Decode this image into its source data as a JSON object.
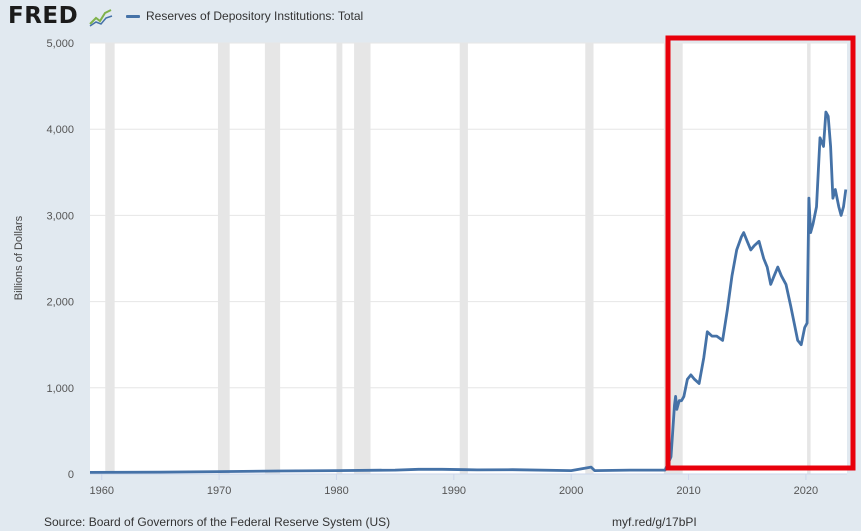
{
  "header": {
    "logo": "FRED",
    "logo_icon": "chart-line-icon",
    "legend_label": "Reserves of Depository Institutions: Total"
  },
  "footer": {
    "source": "Source: Board of Governors of the Federal Reserve System (US)",
    "link": "myf.red/g/17bPI"
  },
  "colors": {
    "series": "#4572a7",
    "recession": "#e6e6e6",
    "highlight": "#e8000b",
    "background": "#e1e9f0"
  },
  "chart_data": {
    "type": "line",
    "title": "",
    "ylabel": "Billions of Dollars",
    "xlabel": "",
    "xlim": [
      1959,
      2023.5
    ],
    "ylim": [
      0,
      5000
    ],
    "x_ticks": [
      1960,
      1970,
      1980,
      1990,
      2000,
      2010,
      2020
    ],
    "y_ticks": [
      0,
      1000,
      2000,
      3000,
      4000,
      5000
    ],
    "y_tick_labels": [
      "0",
      "1,000",
      "2,000",
      "3,000",
      "4,000",
      "5,000"
    ],
    "grid": "horizontal",
    "recessions": [
      [
        1960.3,
        1961.1
      ],
      [
        1969.9,
        1970.9
      ],
      [
        1973.9,
        1975.2
      ],
      [
        1980.0,
        1980.5
      ],
      [
        1981.5,
        1982.9
      ],
      [
        1990.5,
        1991.2
      ],
      [
        2001.2,
        2001.9
      ],
      [
        2007.9,
        2009.5
      ],
      [
        2020.1,
        2020.4
      ]
    ],
    "series": [
      {
        "name": "Reserves of Depository Institutions: Total",
        "x": [
          1959,
          1965,
          1970,
          1975,
          1980,
          1985,
          1987,
          1989,
          1991,
          1992,
          1995,
          2000,
          2001.7,
          2002,
          2005,
          2008.0,
          2008.5,
          2008.8,
          2008.9,
          2009.0,
          2009.2,
          2009.4,
          2009.6,
          2009.9,
          2010.2,
          2010.5,
          2010.9,
          2011.3,
          2011.6,
          2012.0,
          2012.4,
          2012.9,
          2013.3,
          2013.7,
          2014.1,
          2014.5,
          2014.7,
          2015.0,
          2015.3,
          2015.6,
          2016.0,
          2016.4,
          2016.7,
          2017.0,
          2017.3,
          2017.6,
          2017.9,
          2018.3,
          2018.7,
          2019.0,
          2019.3,
          2019.6,
          2019.9,
          2020.1,
          2020.25,
          2020.4,
          2020.6,
          2020.9,
          2021.2,
          2021.5,
          2021.7,
          2021.9,
          2022.1,
          2022.3,
          2022.5,
          2022.8,
          2023.0,
          2023.2,
          2023.4
        ],
        "y": [
          18,
          22,
          28,
          35,
          40,
          45,
          55,
          55,
          50,
          48,
          50,
          40,
          80,
          40,
          45,
          45,
          200,
          800,
          900,
          750,
          850,
          850,
          900,
          1100,
          1150,
          1100,
          1050,
          1350,
          1650,
          1600,
          1600,
          1550,
          1900,
          2300,
          2600,
          2750,
          2800,
          2700,
          2600,
          2650,
          2700,
          2500,
          2400,
          2200,
          2300,
          2400,
          2300,
          2200,
          1950,
          1750,
          1550,
          1500,
          1700,
          1750,
          3200,
          2800,
          2900,
          3100,
          3900,
          3800,
          4200,
          4150,
          3800,
          3200,
          3300,
          3100,
          3000,
          3100,
          3300
        ]
      }
    ]
  }
}
